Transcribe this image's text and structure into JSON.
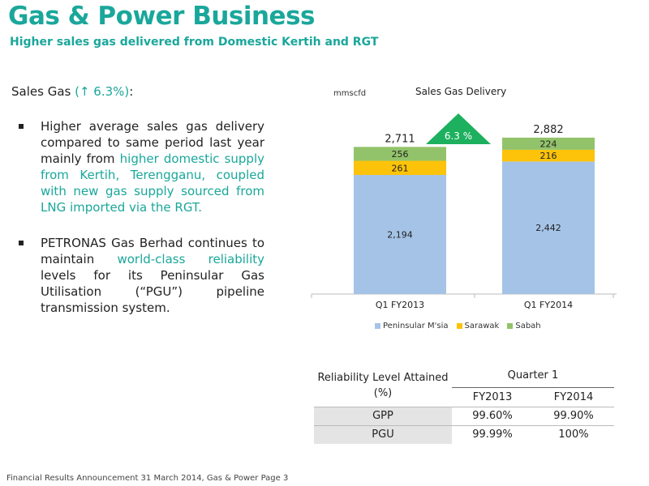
{
  "header": {
    "title": "Gas & Power Business",
    "subtitle": "Higher sales gas delivered from Domestic Kertih and RGT"
  },
  "left": {
    "heading_prefix": "Sales Gas ",
    "heading_pct": "(↑ 6.3%)",
    "heading_suffix": ":",
    "bullet1": {
      "part1": "Higher average sales gas delivery compared to same period last year mainly from ",
      "highlight": "higher domestic supply from Kertih, Terengganu, coupled with new gas supply sourced from LNG imported via the RGT.",
      "part2": ""
    },
    "bullet2": {
      "part1": "PETRONAS Gas Berhad continues to maintain ",
      "highlight": "world-class reliability",
      "part2": " levels for its Peninsular Gas Utilisation (“PGU”) pipeline transmission system."
    }
  },
  "chart": {
    "unit": "mmscfd",
    "title": "Sales Gas Delivery",
    "growth_label": "6.3 %",
    "colors": {
      "peninsular": "#a5c3e6",
      "sarawak": "#fcc30a",
      "sabah": "#92c36a",
      "growth": "#1db05e"
    }
  },
  "chart_data": {
    "type": "bar",
    "stacked": true,
    "title": "Sales Gas Delivery",
    "ylabel": "mmscfd",
    "categories": [
      "Q1 FY2013",
      "Q1 FY2014"
    ],
    "series": [
      {
        "name": "Peninsular M'sia",
        "values": [
          2194,
          2442
        ]
      },
      {
        "name": "Sarawak",
        "values": [
          261,
          216
        ]
      },
      {
        "name": "Sabah",
        "values": [
          256,
          224
        ]
      }
    ],
    "totals": [
      "2,711",
      "2,882"
    ],
    "value_labels": [
      [
        "2,194",
        "261",
        "256"
      ],
      [
        "2,442",
        "216",
        "224"
      ]
    ],
    "annotation": "6.3 %",
    "legend": "bottom",
    "grid": false
  },
  "reliability": {
    "header_left": "Reliability Level Attained (%)",
    "header_group": "Quarter 1",
    "year1": "FY2013",
    "year2": "FY2014",
    "rows": [
      {
        "label": "GPP",
        "fy2013": "99.60%",
        "fy2014": "99.90%"
      },
      {
        "label": "PGU",
        "fy2013": "99.99%",
        "fy2014": "100%"
      }
    ]
  },
  "footer": "Financial Results Announcement 31 March 2014, Gas & Power   Page 3"
}
